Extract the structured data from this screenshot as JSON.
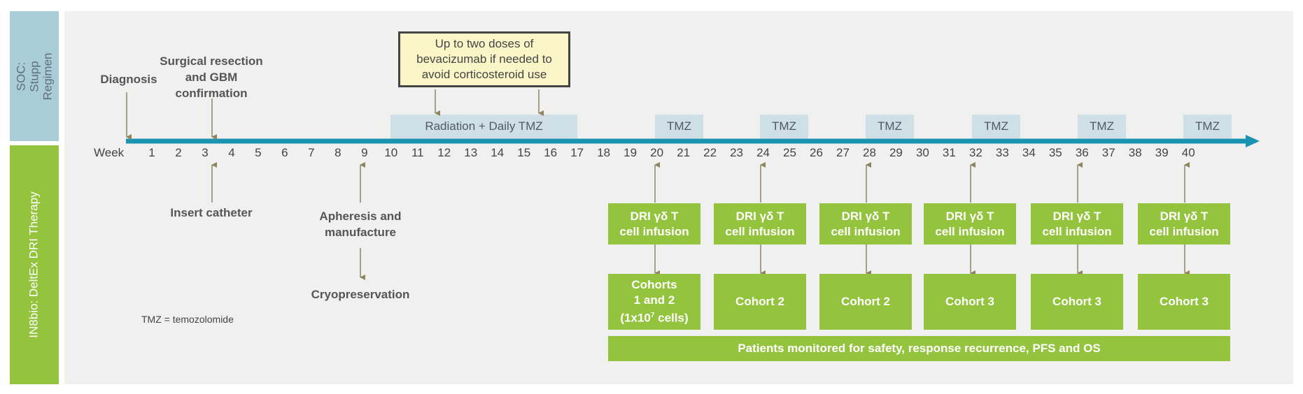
{
  "sidebar": {
    "top_label": "SOC: Stupp Regimen",
    "bottom_label": "IN8bio: DeltEx DRI  Therapy"
  },
  "timeline": {
    "week_label": "Week",
    "weeks": [
      "1",
      "2",
      "3",
      "4",
      "5",
      "6",
      "7",
      "8",
      "9",
      "10",
      "11",
      "12",
      "13",
      "14",
      "15",
      "16",
      "17",
      "18",
      "19",
      "20",
      "21",
      "22",
      "23",
      "24",
      "25",
      "26",
      "27",
      "28",
      "29",
      "30",
      "31",
      "32",
      "33",
      "34",
      "35",
      "36",
      "37",
      "38",
      "39",
      "40"
    ]
  },
  "events_top": {
    "diagnosis": "Diagnosis",
    "surgical_line1": "Surgical resection",
    "surgical_line2": "and GBM",
    "surgical_line3": "confirmation"
  },
  "note_box": {
    "line1": "Up to two doses of",
    "line2": "bevacizumab if needed to",
    "line3": "avoid corticosteroid use"
  },
  "soc_boxes": {
    "radiation": "Radiation + Daily TMZ",
    "tmz": "TMZ"
  },
  "events_bottom": {
    "catheter": "Insert catheter",
    "apheresis_line1": "Apheresis and",
    "apheresis_line2": "manufacture",
    "cryo": "Cryopreservation"
  },
  "infusion": {
    "line1": "DRI γδ T",
    "line2": "cell infusion"
  },
  "cohorts": {
    "c12_line1": "Cohorts",
    "c12_line2": "1 and 2",
    "c12_line3_pre": "(1x10",
    "c12_line3_sup": "7",
    "c12_line3_post": " cells)",
    "c2": "Cohort  2",
    "c3": "Cohort  3"
  },
  "monitoring": "Patients monitored for safety, response recurrence, PFS and OS",
  "footnote": "TMZ = temozolomide",
  "colors": {
    "axis": "#1a93b0",
    "arrow": "#8e8560",
    "green": "#94c43e",
    "blue_box": "#cfdfe6",
    "note_fill": "#fbf6c8"
  }
}
